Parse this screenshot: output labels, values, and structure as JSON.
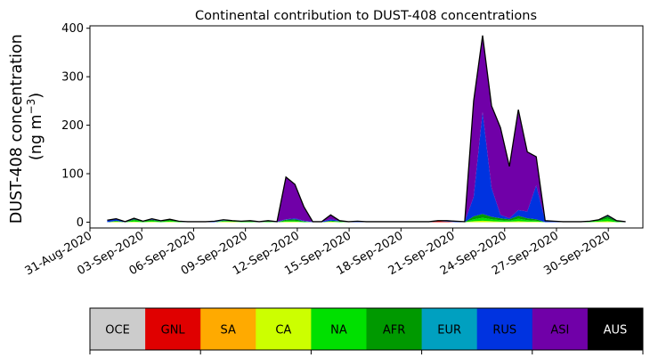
{
  "chart_data": {
    "type": "area",
    "stacked": true,
    "title": "Continental contribution to DUST-408 concentrations",
    "ylabel_line1": "DUST-408 concentration",
    "ylabel_unit": "(ng m",
    "ylabel_exp": "−3",
    "ylabel_close": ")",
    "ylim": [
      -12,
      405
    ],
    "yticks": [
      0,
      100,
      200,
      300,
      400
    ],
    "x_start": "2020-09-01",
    "x_end": "2020-10-01",
    "xlim_dates": [
      "2020-08-31",
      "2020-10-02"
    ],
    "xtick_labels": [
      "31-Aug-2020",
      "03-Sep-2020",
      "06-Sep-2020",
      "09-Sep-2020",
      "12-Sep-2020",
      "15-Sep-2020",
      "18-Sep-2020",
      "21-Sep-2020",
      "24-Sep-2020",
      "27-Sep-2020",
      "30-Sep-2020"
    ],
    "xtick_offsets_days": [
      -1,
      2,
      5,
      8,
      11,
      14,
      17,
      20,
      23,
      26,
      29
    ],
    "total": [
      4,
      7,
      1,
      8,
      2,
      7,
      3,
      6,
      2,
      1,
      1,
      1,
      2,
      5,
      3,
      2,
      3,
      1,
      3,
      1,
      93,
      78,
      32,
      1,
      1,
      15,
      3,
      1,
      2,
      1,
      1,
      1,
      1,
      1,
      1,
      1,
      1,
      3,
      3,
      2,
      1,
      250,
      385,
      240,
      195,
      115,
      232,
      145,
      135,
      3,
      2,
      1,
      1,
      1,
      2,
      5,
      14,
      3,
      1
    ],
    "series": [
      {
        "name": "OCE",
        "color": "#cccccc",
        "values": [
          0,
          0,
          0,
          0,
          0,
          0,
          0,
          0,
          0,
          0,
          0,
          0,
          0,
          0,
          0,
          0,
          0,
          0,
          0,
          0,
          0,
          0,
          0,
          0,
          0,
          0,
          0,
          0,
          0,
          0,
          0,
          0,
          0,
          0,
          0,
          0,
          0,
          0,
          0,
          0,
          0,
          0,
          0,
          0,
          0,
          0,
          0,
          0,
          0,
          0,
          0,
          0,
          0,
          0,
          0,
          0,
          0,
          0,
          0
        ]
      },
      {
        "name": "GNL",
        "color": "#e00000",
        "values": [
          0,
          0,
          0,
          0,
          0,
          0,
          0,
          0,
          0,
          0,
          0,
          0,
          0,
          0,
          0,
          0,
          0,
          0,
          0,
          0,
          0,
          0,
          0,
          0,
          0,
          0,
          0,
          0,
          0,
          0,
          0,
          0,
          0,
          0,
          0,
          0,
          0,
          2,
          1,
          0,
          0,
          0,
          0,
          0,
          0,
          0,
          0,
          0,
          0,
          0,
          0,
          0,
          0,
          0,
          0,
          0,
          0,
          0,
          0
        ]
      },
      {
        "name": "SA",
        "color": "#ffaa00",
        "values": [
          0,
          0,
          0,
          0,
          0,
          0,
          0,
          0,
          0,
          0,
          0,
          0,
          0,
          0,
          0,
          0,
          0,
          0,
          0,
          0,
          0,
          0,
          0,
          0,
          0,
          0,
          0,
          0,
          0,
          0,
          0,
          0,
          0,
          0,
          0,
          0,
          0,
          0,
          0,
          0,
          0,
          0,
          0,
          0,
          0,
          0,
          0,
          0,
          0,
          0,
          0,
          0,
          0,
          0,
          0,
          0,
          0,
          0,
          0
        ]
      },
      {
        "name": "CA",
        "color": "#ccff00",
        "values": [
          0,
          1,
          0,
          1,
          0,
          1,
          0,
          1,
          0,
          0,
          0,
          0,
          0,
          1,
          1,
          0,
          0,
          0,
          0,
          0,
          1,
          1,
          0,
          0,
          0,
          1,
          0,
          0,
          0,
          0,
          0,
          0,
          0,
          0,
          0,
          0,
          0,
          0,
          0,
          0,
          0,
          2,
          3,
          2,
          1,
          1,
          2,
          1,
          1,
          0,
          0,
          0,
          0,
          0,
          0,
          1,
          2,
          0,
          0
        ]
      },
      {
        "name": "NA",
        "color": "#00e000",
        "values": [
          0,
          1,
          0,
          3,
          1,
          2,
          1,
          2,
          1,
          0,
          0,
          0,
          0,
          1,
          1,
          1,
          1,
          0,
          1,
          0,
          2,
          2,
          1,
          0,
          0,
          1,
          1,
          0,
          0,
          0,
          0,
          0,
          0,
          0,
          0,
          0,
          0,
          0,
          0,
          0,
          0,
          4,
          6,
          4,
          3,
          2,
          5,
          3,
          2,
          0,
          0,
          0,
          0,
          0,
          1,
          2,
          5,
          1,
          0
        ]
      },
      {
        "name": "AFR",
        "color": "#009900",
        "values": [
          0,
          1,
          0,
          2,
          1,
          2,
          1,
          2,
          0,
          0,
          0,
          0,
          0,
          1,
          1,
          1,
          1,
          0,
          1,
          0,
          2,
          3,
          1,
          0,
          0,
          1,
          1,
          0,
          0,
          0,
          0,
          0,
          0,
          0,
          0,
          0,
          0,
          0,
          0,
          0,
          0,
          6,
          8,
          5,
          4,
          3,
          6,
          4,
          3,
          0,
          0,
          0,
          0,
          0,
          1,
          2,
          5,
          1,
          0
        ]
      },
      {
        "name": "EUR",
        "color": "#00a0c0",
        "values": [
          0,
          0,
          0,
          0,
          0,
          0,
          0,
          0,
          0,
          0,
          0,
          0,
          0,
          1,
          0,
          0,
          0,
          0,
          0,
          0,
          0,
          0,
          0,
          0,
          0,
          0,
          0,
          0,
          0,
          0,
          0,
          0,
          0,
          0,
          0,
          0,
          0,
          0,
          0,
          0,
          0,
          0,
          0,
          0,
          0,
          0,
          0,
          0,
          0,
          0,
          0,
          0,
          0,
          0,
          0,
          0,
          0,
          0,
          0
        ]
      },
      {
        "name": "RUS",
        "color": "#0033e0",
        "values": [
          4,
          3,
          1,
          1,
          0,
          1,
          1,
          1,
          1,
          1,
          1,
          1,
          1,
          1,
          0,
          0,
          1,
          1,
          1,
          1,
          1,
          2,
          1,
          1,
          1,
          3,
          1,
          1,
          2,
          1,
          1,
          1,
          1,
          1,
          1,
          1,
          1,
          1,
          2,
          2,
          1,
          40,
          210,
          60,
          7,
          2,
          12,
          14,
          70,
          3,
          2,
          1,
          1,
          1,
          0,
          0,
          2,
          1,
          1
        ]
      },
      {
        "name": "ASI",
        "color": "#7000a8",
        "values": [
          0,
          1,
          0,
          1,
          0,
          1,
          0,
          0,
          0,
          0,
          0,
          0,
          1,
          0,
          0,
          0,
          0,
          0,
          0,
          0,
          87,
          70,
          29,
          0,
          0,
          9,
          0,
          0,
          0,
          0,
          0,
          0,
          0,
          0,
          0,
          0,
          0,
          0,
          0,
          0,
          0,
          198,
          158,
          169,
          180,
          107,
          207,
          123,
          59,
          0,
          0,
          0,
          0,
          0,
          0,
          0,
          0,
          0,
          0
        ]
      },
      {
        "name": "AUS",
        "color": "#000000",
        "values": [
          0,
          0,
          0,
          0,
          0,
          0,
          0,
          0,
          0,
          0,
          0,
          0,
          0,
          0,
          0,
          0,
          0,
          0,
          0,
          0,
          0,
          0,
          0,
          0,
          0,
          0,
          0,
          0,
          0,
          0,
          0,
          0,
          0,
          0,
          0,
          0,
          0,
          0,
          0,
          0,
          0,
          0,
          0,
          0,
          0,
          0,
          0,
          0,
          0,
          0,
          0,
          0,
          0,
          0,
          0,
          0,
          0,
          0,
          0
        ]
      }
    ],
    "legend_position": "bottom"
  }
}
